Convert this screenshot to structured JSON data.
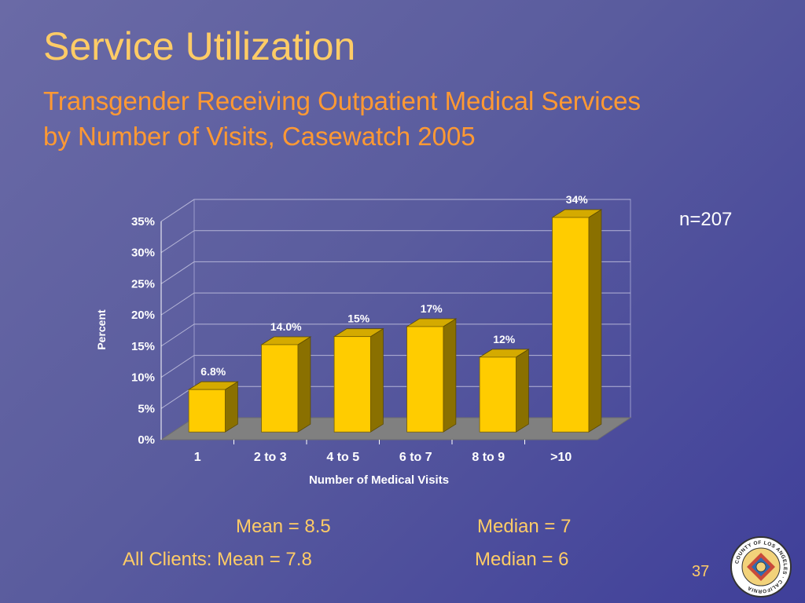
{
  "slide": {
    "title": "Service Utilization",
    "subtitle_line1": "Transgender Receiving Outpatient Medical Services",
    "subtitle_line2": "by Number of Visits, Casewatch 2005",
    "sample_size": "n=207",
    "page_number": "37",
    "seal_text": "COUNTY OF LOS ANGELES · CALIFORNIA"
  },
  "stats": {
    "mean": "Mean = 8.5",
    "median": "Median = 7",
    "all_mean": "All Clients: Mean = 7.8",
    "all_median": "Median = 6"
  },
  "colors": {
    "bar_front": "#ffcc00",
    "bar_side": "#8a7000",
    "bar_top": "#d4aa00",
    "title": "#ffcc66",
    "subtitle": "#ff9933",
    "floor": "#808080"
  },
  "chart_data": {
    "type": "bar",
    "categories": [
      "1",
      "2 to 3",
      "4 to 5",
      "6 to 7",
      "8 to 9",
      ">10"
    ],
    "values": [
      6.8,
      14.0,
      15.3,
      16.9,
      12.0,
      34.4
    ],
    "data_labels": [
      "6.8%",
      "14.0%",
      "15%",
      "17%",
      "12%",
      "34%"
    ],
    "xlabel": "Number of Medical Visits",
    "ylabel": "Percent",
    "ylim": [
      0,
      35
    ],
    "yticks": [
      0,
      5,
      10,
      15,
      20,
      25,
      30,
      35
    ],
    "ytick_labels": [
      "0%",
      "5%",
      "10%",
      "15%",
      "20%",
      "25%",
      "30%",
      "35%"
    ],
    "grid": true,
    "style": "3d"
  }
}
